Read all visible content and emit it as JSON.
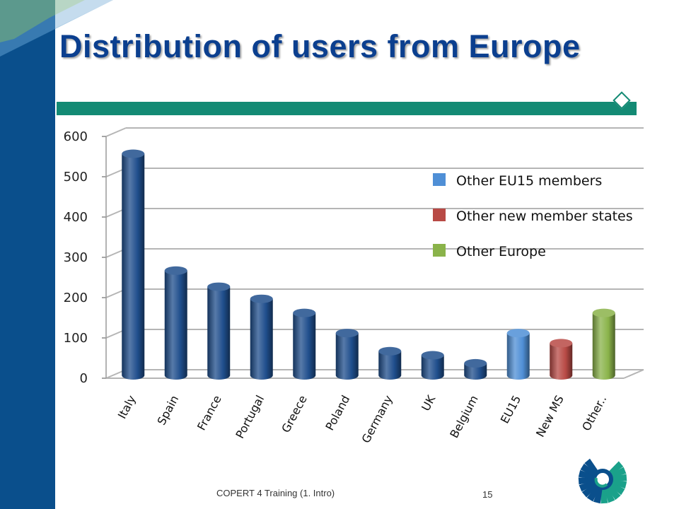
{
  "slide": {
    "title": "Distribution of users from Europe",
    "footer": "COPERT 4 Training (1. Intro)",
    "page_number": "15"
  },
  "colors": {
    "title": "#0b3f8f",
    "left_band": "#0a4f8c",
    "rule": "#138a74",
    "bar_dark_blue": "#1f4e8c",
    "bar_light_blue": "#4f8fd6",
    "bar_red": "#b84a45",
    "bar_green": "#8ab34a"
  },
  "chart_data": {
    "type": "bar",
    "categories": [
      "Italy",
      "Spain",
      "France",
      "Portugal",
      "Greece",
      "Poland",
      "Germany",
      "UK",
      "Belgium",
      "EU15",
      "New MS",
      "Other.."
    ],
    "values": [
      550,
      260,
      220,
      190,
      155,
      105,
      60,
      50,
      30,
      105,
      80,
      155
    ],
    "bar_colors": [
      "#1f4e8c",
      "#1f4e8c",
      "#1f4e8c",
      "#1f4e8c",
      "#1f4e8c",
      "#1f4e8c",
      "#1f4e8c",
      "#1f4e8c",
      "#1f4e8c",
      "#4f8fd6",
      "#b84a45",
      "#8ab34a"
    ],
    "ylim": [
      0,
      600
    ],
    "yticks": [
      0,
      100,
      200,
      300,
      400,
      500,
      600
    ],
    "grid": true,
    "legend": [
      {
        "label": "Other EU15 members",
        "color": "#4f8fd6"
      },
      {
        "label": "Other new member states",
        "color": "#b84a45"
      },
      {
        "label": "Other Europe",
        "color": "#8ab34a"
      }
    ],
    "legend_position": "top-right"
  }
}
